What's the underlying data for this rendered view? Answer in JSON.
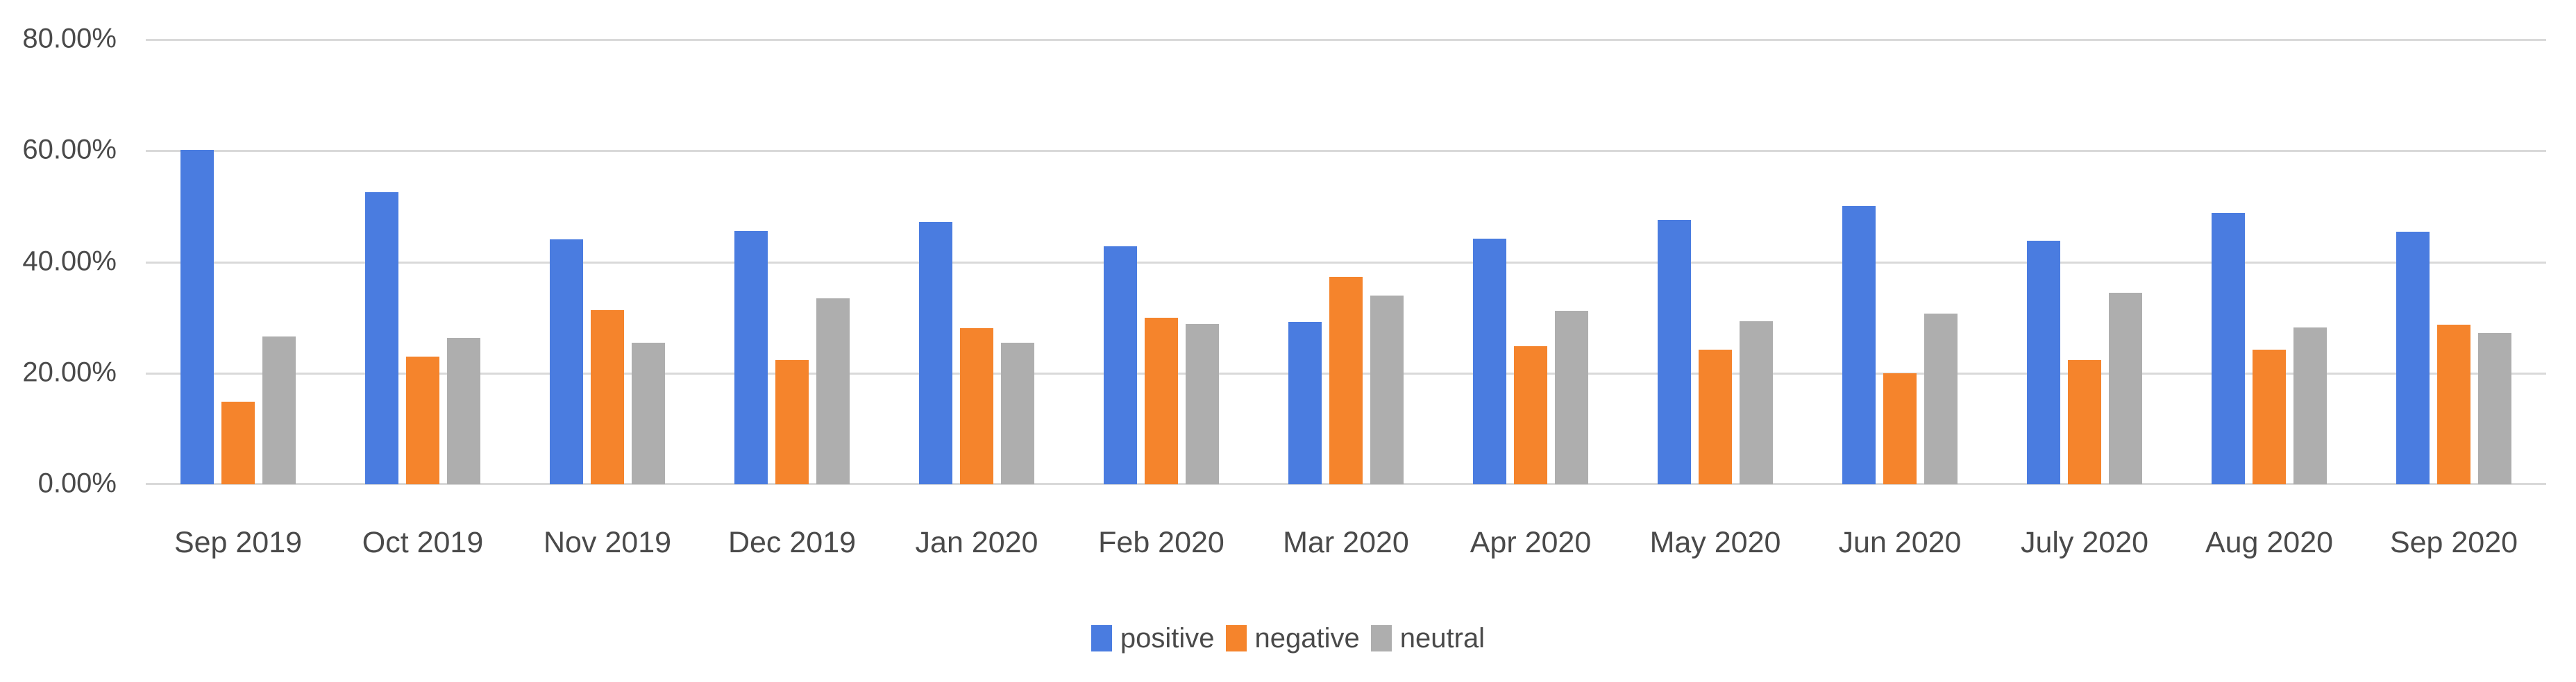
{
  "chart_data": {
    "type": "bar",
    "title": "",
    "xlabel": "",
    "ylabel": "",
    "categories": [
      "Sep 2019",
      "Oct 2019",
      "Nov 2019",
      "Dec 2019",
      "Jan 2020",
      "Feb 2020",
      "Mar 2020",
      "Apr 2020",
      "May 2020",
      "Jun 2020",
      "July 2020",
      "Aug 2020",
      "Sep 2020"
    ],
    "series": [
      {
        "name": "positive",
        "color": "#4a7ce0",
        "values": [
          60.2,
          52.5,
          44.0,
          45.5,
          47.2,
          42.8,
          29.2,
          44.2,
          47.6,
          50.1,
          43.8,
          48.8,
          45.4
        ]
      },
      {
        "name": "negative",
        "color": "#f5842c",
        "values": [
          14.8,
          23.0,
          31.3,
          22.3,
          28.1,
          30.0,
          37.3,
          24.9,
          24.2,
          20.0,
          22.3,
          24.2,
          28.7
        ]
      },
      {
        "name": "neutral",
        "color": "#aeaeae",
        "values": [
          26.6,
          26.3,
          25.4,
          33.5,
          25.5,
          28.8,
          34.0,
          31.2,
          29.3,
          30.7,
          34.5,
          28.2,
          27.2
        ]
      }
    ],
    "ylim": [
      0,
      80
    ],
    "yticks": [
      {
        "value": 80,
        "label": "80.00%"
      },
      {
        "value": 60,
        "label": "60.00%"
      },
      {
        "value": 40,
        "label": "40.00%"
      },
      {
        "value": 20,
        "label": "20.00%"
      },
      {
        "value": 0,
        "label": "0.00%"
      }
    ],
    "grid": "horizontal",
    "legend_position": "bottom",
    "colors": {
      "gridline": "#d9d9d9",
      "axis_text": "#4a4a4a",
      "background": "#ffffff"
    }
  }
}
